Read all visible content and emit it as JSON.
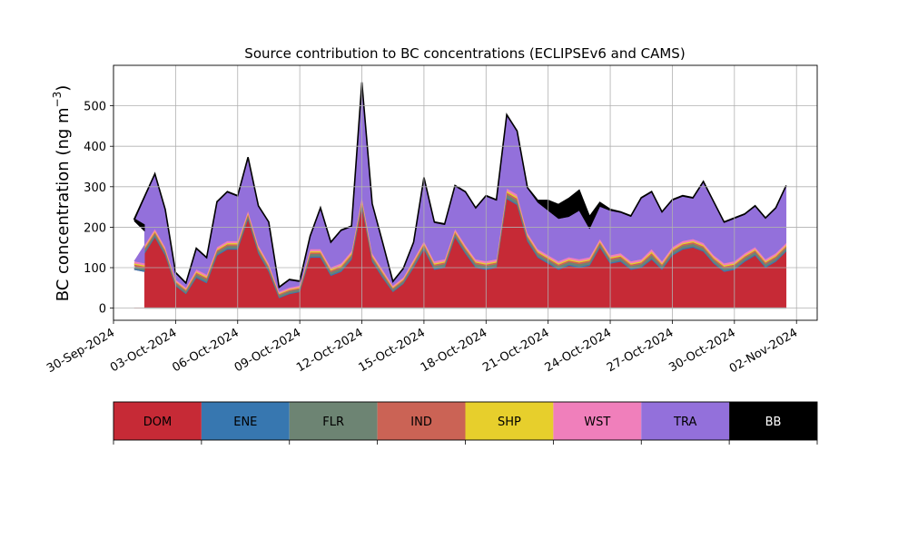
{
  "chart_data": {
    "type": "area",
    "title": "Source contribution to BC concentrations (ECLIPSEv6 and CAMS)",
    "ylabel": "BC concentration (ng m",
    "ylabel_sup": "−3",
    "ylabel_close": ")",
    "xlabel": "",
    "x_range": [
      "2024-09-30",
      "2024-11-03"
    ],
    "ylim": [
      -30,
      600
    ],
    "y_ticks": [
      0,
      100,
      200,
      300,
      400,
      500
    ],
    "x_tick_labels": [
      "30-Sep-2024",
      "03-Oct-2024",
      "06-Oct-2024",
      "09-Oct-2024",
      "12-Oct-2024",
      "15-Oct-2024",
      "18-Oct-2024",
      "21-Oct-2024",
      "24-Oct-2024",
      "27-Oct-2024",
      "30-Oct-2024",
      "02-Nov-2024"
    ],
    "x_tick_dates": [
      "2024-09-30",
      "2024-10-03",
      "2024-10-06",
      "2024-10-09",
      "2024-10-12",
      "2024-10-15",
      "2024-10-18",
      "2024-10-21",
      "2024-10-24",
      "2024-10-27",
      "2024-10-30",
      "2024-11-02"
    ],
    "grid": true,
    "x": [
      "2024-10-01",
      "2024-10-01",
      "2024-10-02",
      "2024-10-02",
      "2024-10-03",
      "2024-10-03",
      "2024-10-04",
      "2024-10-04",
      "2024-10-05",
      "2024-10-05",
      "2024-10-06",
      "2024-10-06",
      "2024-10-07",
      "2024-10-07",
      "2024-10-08",
      "2024-10-08",
      "2024-10-09",
      "2024-10-09",
      "2024-10-10",
      "2024-10-10",
      "2024-10-11",
      "2024-10-11",
      "2024-10-12",
      "2024-10-12",
      "2024-10-13",
      "2024-10-13",
      "2024-10-14",
      "2024-10-14",
      "2024-10-15",
      "2024-10-15",
      "2024-10-16",
      "2024-10-16",
      "2024-10-17",
      "2024-10-17",
      "2024-10-18",
      "2024-10-18",
      "2024-10-19",
      "2024-10-19",
      "2024-10-20",
      "2024-10-20",
      "2024-10-21",
      "2024-10-21",
      "2024-10-22",
      "2024-10-22",
      "2024-10-23",
      "2024-10-23",
      "2024-10-24",
      "2024-10-24",
      "2024-10-25",
      "2024-10-25",
      "2024-10-26",
      "2024-10-26",
      "2024-10-27",
      "2024-10-27",
      "2024-10-28",
      "2024-10-28",
      "2024-10-29",
      "2024-10-29",
      "2024-10-30",
      "2024-10-30",
      "2024-10-31",
      "2024-10-31",
      "2024-11-01",
      "2024-11-01"
    ],
    "x_hours": [
      12,
      0,
      0,
      12,
      0,
      12,
      0,
      12,
      0,
      12,
      0,
      12,
      0,
      12,
      0,
      12,
      0,
      12,
      0,
      12,
      0,
      12,
      0,
      12,
      0,
      12,
      0,
      12,
      0,
      12,
      0,
      12,
      0,
      12,
      0,
      12,
      0,
      12,
      0,
      12,
      0,
      12,
      0,
      12,
      0,
      12,
      0,
      12,
      0,
      12,
      0,
      12,
      0,
      12,
      0,
      12,
      0,
      12,
      0,
      12,
      0,
      12,
      0,
      12
    ],
    "series": [
      {
        "name": "DOM",
        "color": "#c62a36",
        "values": [
          90,
          95,
          175,
          130,
          55,
          35,
          75,
          62,
          130,
          145,
          145,
          220,
          135,
          90,
          25,
          35,
          40,
          125,
          125,
          80,
          90,
          120,
          250,
          115,
          75,
          40,
          60,
          100,
          145,
          95,
          100,
          175,
          135,
          100,
          95,
          100,
          270,
          255,
          165,
          125,
          110,
          95,
          105,
          100,
          105,
          150,
          110,
          115,
          95,
          100,
          120,
          95,
          130,
          145,
          150,
          140,
          110,
          90,
          95,
          115,
          130,
          100,
          115,
          140
        ]
      },
      {
        "name": "ENE",
        "color": "#3777b0",
        "values": [
          3,
          3,
          3,
          3,
          2,
          2,
          3,
          3,
          3,
          3,
          3,
          3,
          3,
          3,
          2,
          2,
          2,
          3,
          3,
          3,
          3,
          3,
          3,
          3,
          3,
          2,
          2,
          3,
          3,
          3,
          3,
          3,
          3,
          3,
          3,
          3,
          3,
          3,
          3,
          3,
          3,
          3,
          3,
          3,
          3,
          3,
          3,
          3,
          3,
          3,
          3,
          3,
          3,
          3,
          3,
          3,
          3,
          3,
          3,
          3,
          3,
          3,
          3,
          3
        ]
      },
      {
        "name": "FLR",
        "color": "#6d8473",
        "values": [
          6,
          6,
          6,
          6,
          5,
          5,
          6,
          6,
          6,
          6,
          6,
          6,
          6,
          6,
          5,
          5,
          5,
          6,
          6,
          6,
          6,
          6,
          8,
          6,
          6,
          5,
          5,
          6,
          6,
          6,
          6,
          6,
          6,
          6,
          6,
          6,
          8,
          8,
          6,
          6,
          6,
          6,
          6,
          6,
          6,
          6,
          6,
          6,
          6,
          6,
          8,
          6,
          6,
          6,
          6,
          6,
          6,
          6,
          6,
          6,
          6,
          6,
          6,
          6
        ]
      },
      {
        "name": "IND",
        "color": "#cb6355",
        "values": [
          4,
          4,
          4,
          4,
          3,
          3,
          4,
          4,
          4,
          4,
          4,
          4,
          4,
          4,
          3,
          3,
          3,
          4,
          4,
          4,
          4,
          4,
          5,
          4,
          4,
          3,
          3,
          4,
          4,
          4,
          4,
          4,
          4,
          4,
          4,
          4,
          5,
          5,
          4,
          4,
          4,
          4,
          4,
          4,
          4,
          4,
          4,
          4,
          4,
          4,
          5,
          4,
          4,
          4,
          4,
          4,
          4,
          4,
          4,
          4,
          4,
          4,
          4,
          4
        ]
      },
      {
        "name": "SHP",
        "color": "#e7cf2c",
        "values": [
          3,
          3,
          3,
          3,
          2,
          2,
          3,
          3,
          3,
          3,
          3,
          3,
          3,
          3,
          2,
          2,
          2,
          3,
          3,
          3,
          3,
          3,
          4,
          3,
          3,
          2,
          2,
          3,
          3,
          3,
          3,
          3,
          3,
          3,
          3,
          3,
          4,
          4,
          3,
          3,
          3,
          3,
          3,
          3,
          3,
          3,
          3,
          3,
          3,
          3,
          4,
          3,
          3,
          3,
          3,
          3,
          3,
          3,
          3,
          3,
          3,
          3,
          3,
          3
        ]
      },
      {
        "name": "WST",
        "color": "#f07fbb",
        "values": [
          5,
          5,
          5,
          5,
          4,
          4,
          5,
          5,
          5,
          5,
          5,
          5,
          5,
          5,
          4,
          4,
          4,
          5,
          5,
          5,
          5,
          5,
          6,
          5,
          5,
          4,
          4,
          5,
          5,
          5,
          5,
          5,
          5,
          5,
          5,
          5,
          6,
          6,
          5,
          5,
          5,
          5,
          5,
          5,
          5,
          5,
          5,
          5,
          5,
          5,
          6,
          5,
          5,
          5,
          5,
          5,
          5,
          5,
          5,
          5,
          5,
          5,
          5,
          5
        ]
      },
      {
        "name": "TRA",
        "color": "#9370db",
        "values": [
          79,
          99,
          134,
          90,
          15,
          9,
          50,
          40,
          110,
          120,
          110,
          130,
          95,
          100,
          9,
          18,
          9,
          30,
          100,
          60,
          80,
          60,
          280,
          120,
          65,
          8,
          20,
          40,
          155,
          95,
          85,
          105,
          130,
          125,
          160,
          145,
          180,
          155,
          110,
          115,
          110,
          105,
          100,
          120,
          70,
          80,
          110,
          100,
          110,
          150,
          140,
          120,
          115,
          110,
          100,
          150,
          130,
          100,
          105,
          95,
          100,
          100,
          110,
          140
        ]
      },
      {
        "name": "BB",
        "color": "#000000",
        "values": [
          15,
          5,
          2,
          3,
          2,
          2,
          2,
          2,
          2,
          2,
          2,
          2,
          2,
          2,
          2,
          2,
          2,
          2,
          2,
          2,
          2,
          2,
          2,
          2,
          2,
          2,
          2,
          2,
          2,
          2,
          2,
          2,
          2,
          2,
          2,
          2,
          2,
          2,
          2,
          5,
          25,
          35,
          45,
          50,
          30,
          10,
          3,
          2,
          2,
          2,
          2,
          2,
          2,
          2,
          2,
          2,
          2,
          2,
          2,
          2,
          2,
          2,
          2,
          2
        ]
      }
    ]
  },
  "legend_labels": [
    "DOM",
    "ENE",
    "FLR",
    "IND",
    "SHP",
    "WST",
    "TRA",
    "BB"
  ]
}
